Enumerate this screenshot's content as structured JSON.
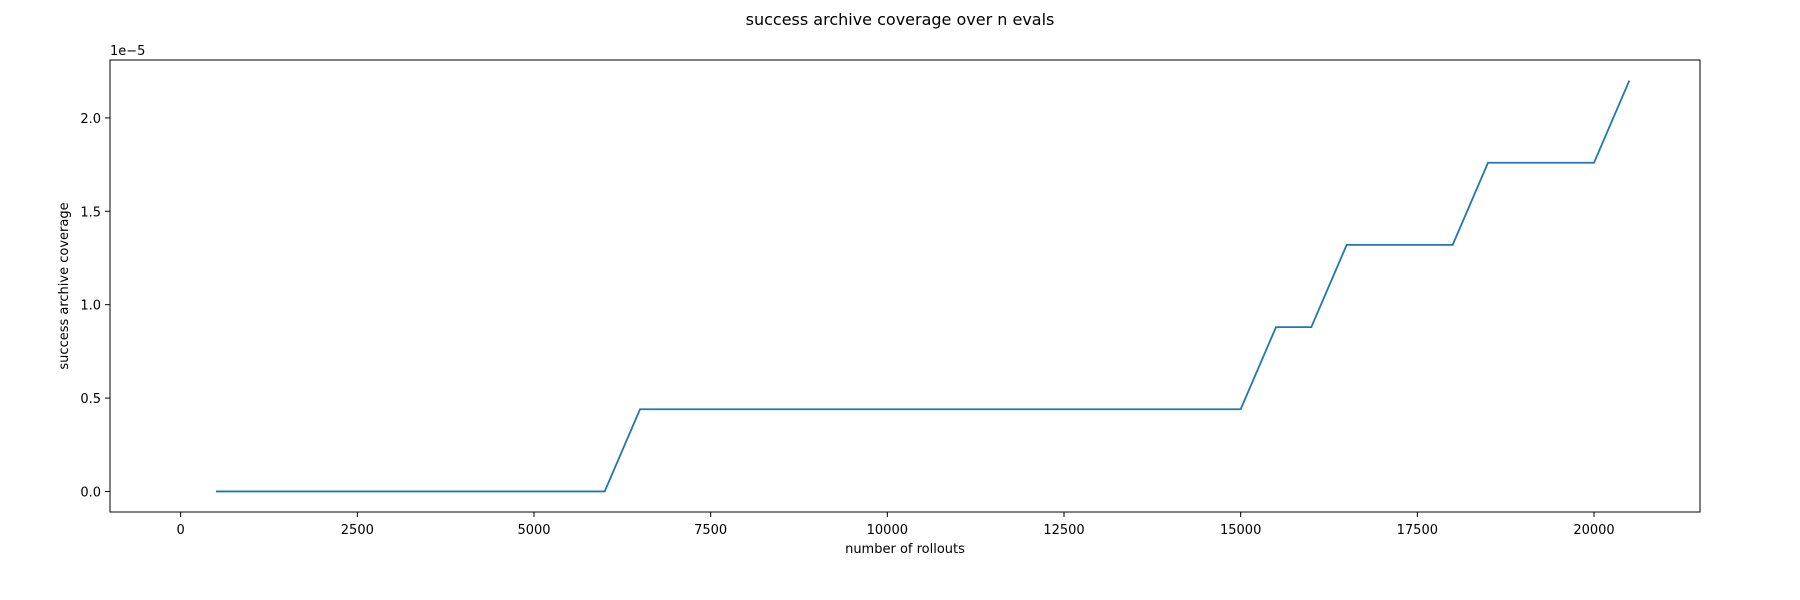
{
  "chart_data": {
    "type": "line",
    "title": "success archive coverage over n evals",
    "xlabel": "number of rollouts",
    "ylabel": "success archive coverage",
    "y_offset_text": "1e−5",
    "xlim": [
      -1000,
      21500
    ],
    "ylim": [
      -1.1e-06,
      2.31e-05
    ],
    "x_ticks": [
      0,
      2500,
      5000,
      7500,
      10000,
      12500,
      15000,
      17500,
      20000
    ],
    "x_tick_labels": [
      "0",
      "2500",
      "5000",
      "7500",
      "10000",
      "12500",
      "15000",
      "17500",
      "20000"
    ],
    "y_ticks": [
      0,
      5e-06,
      1e-05,
      1.5e-05,
      2e-05
    ],
    "y_tick_labels": [
      "0.0",
      "0.5",
      "1.0",
      "1.5",
      "2.0"
    ],
    "grid": false,
    "series": [
      {
        "color": "#1f77b4",
        "x": [
          500,
          1000,
          1500,
          2000,
          2500,
          3000,
          3500,
          4000,
          4500,
          5000,
          5500,
          6000,
          6500,
          7000,
          7500,
          8000,
          8500,
          9000,
          9500,
          10000,
          10500,
          11000,
          11500,
          12000,
          12500,
          13000,
          13500,
          14000,
          14500,
          15000,
          15500,
          16000,
          16500,
          17000,
          17500,
          18000,
          18500,
          19000,
          19500,
          20000,
          20500
        ],
        "y": [
          0,
          0,
          0,
          0,
          0,
          0,
          0,
          0,
          0,
          0,
          0,
          0,
          4.4e-06,
          4.4e-06,
          4.4e-06,
          4.4e-06,
          4.4e-06,
          4.4e-06,
          4.4e-06,
          4.4e-06,
          4.4e-06,
          4.4e-06,
          4.4e-06,
          4.4e-06,
          4.4e-06,
          4.4e-06,
          4.4e-06,
          4.4e-06,
          4.4e-06,
          4.4e-06,
          8.8e-06,
          8.8e-06,
          1.32e-05,
          1.32e-05,
          1.32e-05,
          1.32e-05,
          1.76e-05,
          1.76e-05,
          1.76e-05,
          1.76e-05,
          2.2e-05
        ]
      }
    ]
  }
}
